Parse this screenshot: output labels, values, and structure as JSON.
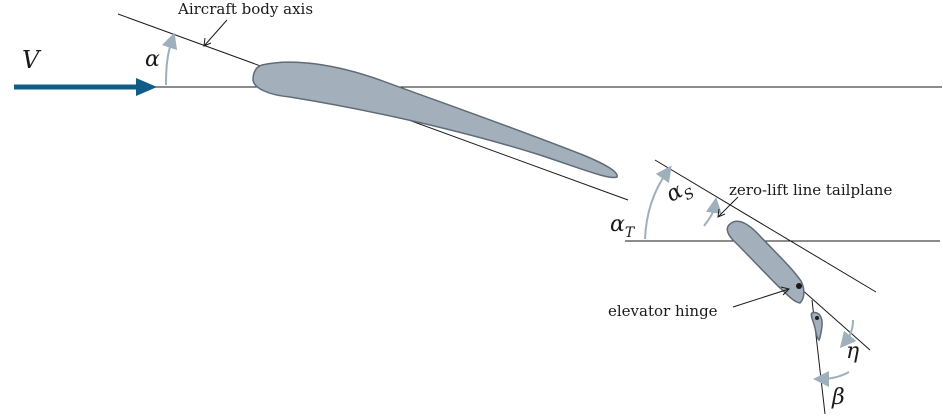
{
  "labels": {
    "velocity": "V",
    "alpha": "α",
    "alpha_s_base": "α",
    "alpha_s_sub": "S",
    "alpha_t_base": "α",
    "alpha_t_sub": "T",
    "eta": "η",
    "beta": "β",
    "body_axis": "Aircraft body axis",
    "zero_lift_line": "zero-lift line tailplane",
    "elevator_hinge": "elevator hinge"
  },
  "colors": {
    "velocity_arrow": "#0f5c87",
    "airfoil_fill": "#a3b0bc",
    "airfoil_stroke": "#5f6b76",
    "angle_arc": "#9fb0bd",
    "line": "#1a1a1a"
  }
}
